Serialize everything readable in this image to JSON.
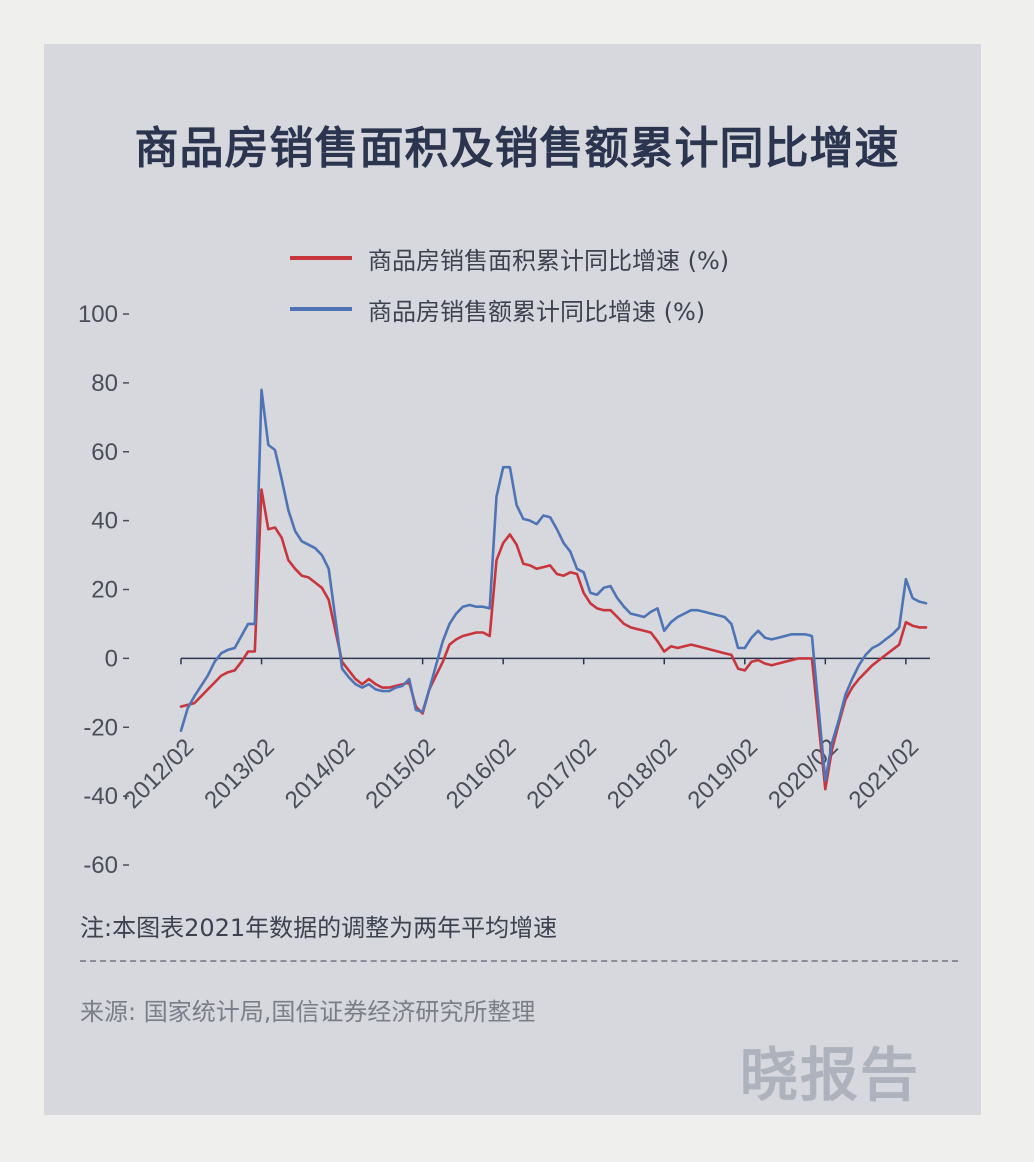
{
  "title": "商品房销售面积及销售额累计同比增速",
  "legend": [
    {
      "label": "商品房销售面积累计同比增速 (%)",
      "color": "#c8363d"
    },
    {
      "label": "商品房销售额累计同比增速 (%)",
      "color": "#4f74b5"
    }
  ],
  "note": "注:本图表2021年数据的调整为两年平均增速",
  "source": "来源: 国家统计局,国信证券经济研究所整理",
  "watermark": "晓报告",
  "chart_data": {
    "type": "line",
    "title": "商品房销售面积及销售额累计同比增速",
    "ylim": [
      -60,
      100
    ],
    "yticks": [
      100,
      80,
      60,
      40,
      20,
      0,
      -20,
      -40,
      -60
    ],
    "xticks": [
      "2012/02",
      "2013/02",
      "2014/02",
      "2015/02",
      "2016/02",
      "2017/02",
      "2018/02",
      "2019/02",
      "2020/02",
      "2021/02"
    ],
    "grid": false,
    "legend_position": "top",
    "series": [
      {
        "name": "商品房销售面积累计同比增速 (%)",
        "color": "#c8363d",
        "points": [
          [
            "2012/02",
            -14
          ],
          [
            "2012/03",
            -13.5
          ],
          [
            "2012/04",
            -13
          ],
          [
            "2012/05",
            -11
          ],
          [
            "2012/06",
            -9
          ],
          [
            "2012/07",
            -7
          ],
          [
            "2012/08",
            -5
          ],
          [
            "2012/09",
            -4
          ],
          [
            "2012/10",
            -3.5
          ],
          [
            "2012/11",
            -1
          ],
          [
            "2012/12",
            2
          ],
          [
            "2013/01",
            2
          ],
          [
            "2013/02",
            49
          ],
          [
            "2013/03",
            37.5
          ],
          [
            "2013/04",
            38
          ],
          [
            "2013/05",
            35
          ],
          [
            "2013/06",
            28.5
          ],
          [
            "2013/07",
            26
          ],
          [
            "2013/08",
            24
          ],
          [
            "2013/09",
            23.5
          ],
          [
            "2013/10",
            22
          ],
          [
            "2013/11",
            20.5
          ],
          [
            "2013/12",
            17
          ],
          [
            "2014/02",
            -1
          ],
          [
            "2014/03",
            -3.5
          ],
          [
            "2014/04",
            -6
          ],
          [
            "2014/05",
            -7.5
          ],
          [
            "2014/06",
            -6
          ],
          [
            "2014/07",
            -7.5
          ],
          [
            "2014/08",
            -8.5
          ],
          [
            "2014/09",
            -8.5
          ],
          [
            "2014/10",
            -8
          ],
          [
            "2014/11",
            -7.5
          ],
          [
            "2014/12",
            -7
          ],
          [
            "2015/01",
            -14
          ],
          [
            "2015/02",
            -16
          ],
          [
            "2015/03",
            -9
          ],
          [
            "2015/04",
            -5
          ],
          [
            "2015/05",
            -1
          ],
          [
            "2015/06",
            4
          ],
          [
            "2015/07",
            5.5
          ],
          [
            "2015/08",
            6.5
          ],
          [
            "2015/09",
            7
          ],
          [
            "2015/10",
            7.5
          ],
          [
            "2015/11",
            7.5
          ],
          [
            "2015/12",
            6.5
          ],
          [
            "2016/01",
            28.5
          ],
          [
            "2016/02",
            33.5
          ],
          [
            "2016/03",
            36
          ],
          [
            "2016/04",
            33
          ],
          [
            "2016/05",
            27.5
          ],
          [
            "2016/06",
            27
          ],
          [
            "2016/07",
            26
          ],
          [
            "2016/08",
            26.5
          ],
          [
            "2016/09",
            27
          ],
          [
            "2016/10",
            24.5
          ],
          [
            "2016/11",
            24
          ],
          [
            "2016/12",
            25
          ],
          [
            "2017/01",
            24.5
          ],
          [
            "2017/02",
            19
          ],
          [
            "2017/03",
            16
          ],
          [
            "2017/04",
            14.5
          ],
          [
            "2017/05",
            14
          ],
          [
            "2017/06",
            14
          ],
          [
            "2017/07",
            12
          ],
          [
            "2017/08",
            10
          ],
          [
            "2017/09",
            9
          ],
          [
            "2017/10",
            8.5
          ],
          [
            "2017/11",
            8
          ],
          [
            "2017/12",
            7.5
          ],
          [
            "2018/01",
            5
          ],
          [
            "2018/02",
            2
          ],
          [
            "2018/03",
            3.5
          ],
          [
            "2018/04",
            3
          ],
          [
            "2018/05",
            3.5
          ],
          [
            "2018/06",
            4
          ],
          [
            "2018/07",
            3.5
          ],
          [
            "2018/08",
            3
          ],
          [
            "2018/09",
            2.5
          ],
          [
            "2018/10",
            2
          ],
          [
            "2018/11",
            1.5
          ],
          [
            "2018/12",
            1
          ],
          [
            "2019/01",
            -3
          ],
          [
            "2019/02",
            -3.5
          ],
          [
            "2019/03",
            -1
          ],
          [
            "2019/04",
            -0.5
          ],
          [
            "2019/05",
            -1.5
          ],
          [
            "2019/06",
            -2
          ],
          [
            "2019/07",
            -1.5
          ],
          [
            "2019/08",
            -1
          ],
          [
            "2019/09",
            -0.5
          ],
          [
            "2019/10",
            0
          ],
          [
            "2019/11",
            0
          ],
          [
            "2019/12",
            0
          ],
          [
            "2020/02",
            -38
          ],
          [
            "2020/03",
            -26.5
          ],
          [
            "2020/04",
            -19
          ],
          [
            "2020/05",
            -12
          ],
          [
            "2020/06",
            -8.5
          ],
          [
            "2020/07",
            -6
          ],
          [
            "2020/08",
            -4
          ],
          [
            "2020/09",
            -2
          ],
          [
            "2020/10",
            -0.5
          ],
          [
            "2020/11",
            1
          ],
          [
            "2020/12",
            2.5
          ],
          [
            "2021/01",
            4
          ],
          [
            "2021/02",
            10.5
          ],
          [
            "2021/03",
            9.5
          ],
          [
            "2021/04",
            9
          ],
          [
            "2021/05",
            9
          ]
        ]
      },
      {
        "name": "商品房销售额累计同比增速 (%)",
        "color": "#4f74b5",
        "points": [
          [
            "2012/02",
            -21
          ],
          [
            "2012/03",
            -14.5
          ],
          [
            "2012/04",
            -11
          ],
          [
            "2012/05",
            -8
          ],
          [
            "2012/06",
            -5
          ],
          [
            "2012/07",
            -1
          ],
          [
            "2012/08",
            1.5
          ],
          [
            "2012/09",
            2.5
          ],
          [
            "2012/10",
            3
          ],
          [
            "2012/11",
            6.5
          ],
          [
            "2012/12",
            10
          ],
          [
            "2013/01",
            10
          ],
          [
            "2013/02",
            78
          ],
          [
            "2013/03",
            62
          ],
          [
            "2013/04",
            60.5
          ],
          [
            "2013/05",
            52
          ],
          [
            "2013/06",
            43
          ],
          [
            "2013/07",
            37
          ],
          [
            "2013/08",
            34
          ],
          [
            "2013/09",
            33
          ],
          [
            "2013/10",
            32
          ],
          [
            "2013/11",
            30
          ],
          [
            "2013/12",
            26
          ],
          [
            "2014/02",
            -3
          ],
          [
            "2014/03",
            -5.5
          ],
          [
            "2014/04",
            -7.5
          ],
          [
            "2014/05",
            -8.5
          ],
          [
            "2014/06",
            -7.5
          ],
          [
            "2014/07",
            -9
          ],
          [
            "2014/08",
            -9.5
          ],
          [
            "2014/09",
            -9.5
          ],
          [
            "2014/10",
            -8.5
          ],
          [
            "2014/11",
            -8
          ],
          [
            "2014/12",
            -6
          ],
          [
            "2015/01",
            -15
          ],
          [
            "2015/02",
            -15.5
          ],
          [
            "2015/03",
            -9
          ],
          [
            "2015/04",
            -2
          ],
          [
            "2015/05",
            5
          ],
          [
            "2015/06",
            10
          ],
          [
            "2015/07",
            13
          ],
          [
            "2015/08",
            15
          ],
          [
            "2015/09",
            15.5
          ],
          [
            "2015/10",
            15
          ],
          [
            "2015/11",
            15
          ],
          [
            "2015/12",
            14.5
          ],
          [
            "2016/01",
            47
          ],
          [
            "2016/02",
            55.5
          ],
          [
            "2016/03",
            55.5
          ],
          [
            "2016/04",
            44.5
          ],
          [
            "2016/05",
            40.5
          ],
          [
            "2016/06",
            40
          ],
          [
            "2016/07",
            39
          ],
          [
            "2016/08",
            41.5
          ],
          [
            "2016/09",
            41
          ],
          [
            "2016/10",
            37.5
          ],
          [
            "2016/11",
            33.5
          ],
          [
            "2016/12",
            31
          ],
          [
            "2017/01",
            26
          ],
          [
            "2017/02",
            25
          ],
          [
            "2017/03",
            19
          ],
          [
            "2017/04",
            18.5
          ],
          [
            "2017/05",
            20.5
          ],
          [
            "2017/06",
            21
          ],
          [
            "2017/07",
            17.5
          ],
          [
            "2017/08",
            15
          ],
          [
            "2017/09",
            13
          ],
          [
            "2017/10",
            12.5
          ],
          [
            "2017/11",
            12
          ],
          [
            "2017/12",
            13.5
          ],
          [
            "2018/01",
            14.5
          ],
          [
            "2018/02",
            8
          ],
          [
            "2018/03",
            10.5
          ],
          [
            "2018/04",
            12
          ],
          [
            "2018/05",
            13
          ],
          [
            "2018/06",
            14
          ],
          [
            "2018/07",
            14
          ],
          [
            "2018/08",
            13.5
          ],
          [
            "2018/09",
            13
          ],
          [
            "2018/10",
            12.5
          ],
          [
            "2018/11",
            12
          ],
          [
            "2018/12",
            10
          ],
          [
            "2019/01",
            3
          ],
          [
            "2019/02",
            3
          ],
          [
            "2019/03",
            6
          ],
          [
            "2019/04",
            8
          ],
          [
            "2019/05",
            6
          ],
          [
            "2019/06",
            5.5
          ],
          [
            "2019/07",
            6
          ],
          [
            "2019/08",
            6.5
          ],
          [
            "2019/09",
            7
          ],
          [
            "2019/10",
            7
          ],
          [
            "2019/11",
            7
          ],
          [
            "2019/12",
            6.5
          ],
          [
            "2020/02",
            -35.5
          ],
          [
            "2020/03",
            -24.5
          ],
          [
            "2020/04",
            -18
          ],
          [
            "2020/05",
            -10.5
          ],
          [
            "2020/06",
            -6
          ],
          [
            "2020/07",
            -2
          ],
          [
            "2020/08",
            1
          ],
          [
            "2020/09",
            3
          ],
          [
            "2020/10",
            4
          ],
          [
            "2020/11",
            5.5
          ],
          [
            "2020/12",
            7
          ],
          [
            "2021/01",
            9
          ],
          [
            "2021/02",
            23
          ],
          [
            "2021/03",
            17.5
          ],
          [
            "2021/04",
            16.5
          ],
          [
            "2021/05",
            16
          ]
        ]
      }
    ]
  }
}
